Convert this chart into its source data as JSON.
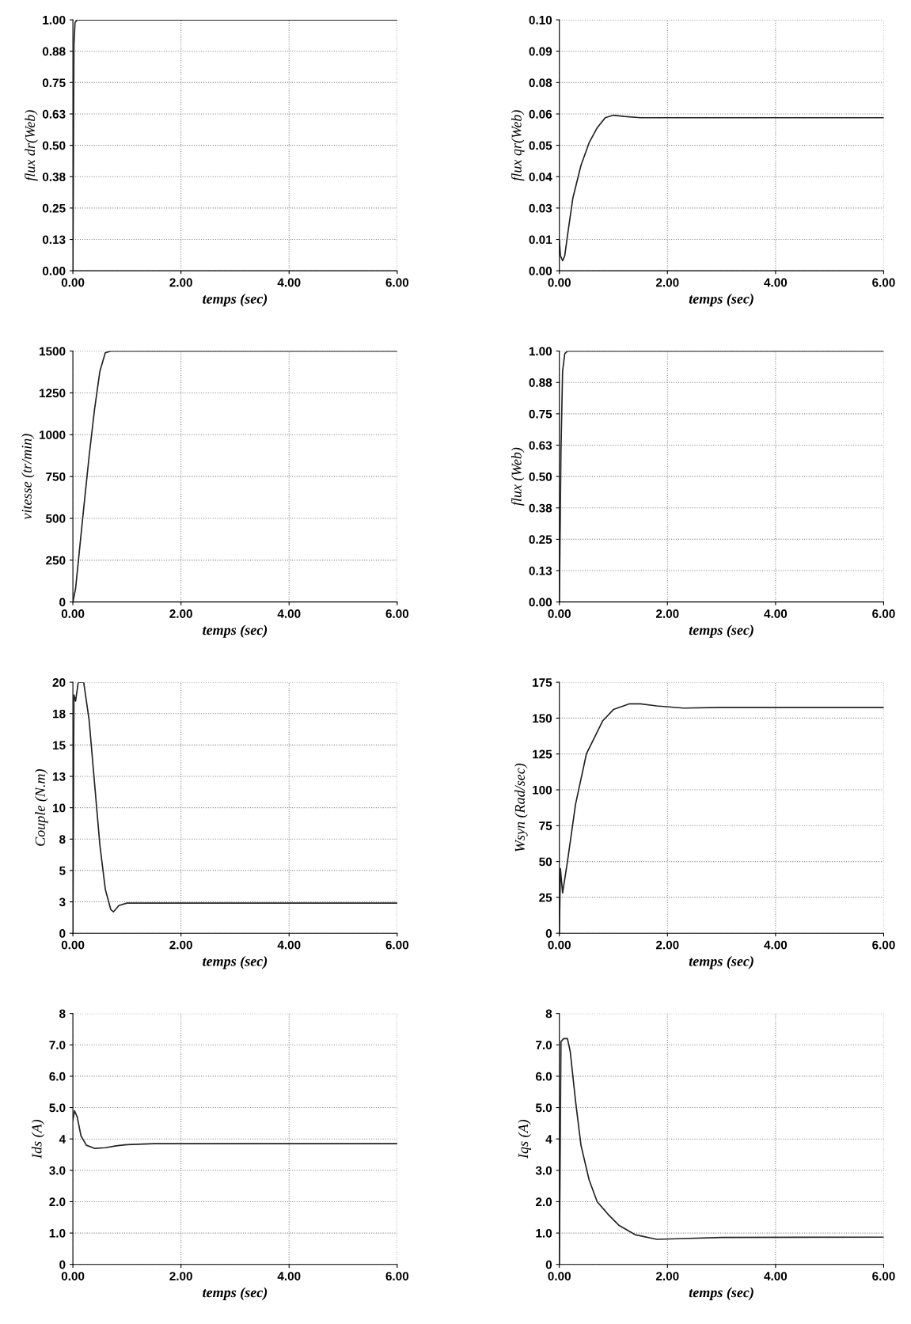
{
  "chart_data": [
    {
      "type": "line",
      "ylabel": "flux dr(Web)",
      "xlabel": "temps (sec)",
      "grid": true,
      "color": "#222222",
      "xlim": [
        0,
        6
      ],
      "xticks": [
        {
          "value": 0,
          "label": "0.00"
        },
        {
          "value": 2,
          "label": "2.00"
        },
        {
          "value": 4,
          "label": "4.00"
        },
        {
          "value": 6,
          "label": "6.00"
        }
      ],
      "ylim": [
        0,
        1
      ],
      "yticks": [
        {
          "value": 0,
          "label": "0.00"
        },
        {
          "value": 0.125,
          "label": "0.13"
        },
        {
          "value": 0.25,
          "label": "0.25"
        },
        {
          "value": 0.375,
          "label": "0.38"
        },
        {
          "value": 0.5,
          "label": "0.50"
        },
        {
          "value": 0.625,
          "label": "0.63"
        },
        {
          "value": 0.75,
          "label": "0.75"
        },
        {
          "value": 0.875,
          "label": "0.88"
        },
        {
          "value": 1,
          "label": "1.00"
        }
      ],
      "x": [
        0,
        0.02,
        0.04,
        0.08,
        0.2,
        1,
        3,
        6
      ],
      "values": [
        0,
        0.9,
        0.99,
        1.0,
        1.0,
        1.0,
        1.0,
        1.0
      ]
    },
    {
      "type": "line",
      "ylabel": "flux qr(Web)",
      "xlabel": "temps (sec)",
      "grid": true,
      "color": "#222222",
      "xlim": [
        0,
        6
      ],
      "xticks": [
        {
          "value": 0,
          "label": "0.00"
        },
        {
          "value": 2,
          "label": "2.00"
        },
        {
          "value": 4,
          "label": "4.00"
        },
        {
          "value": 6,
          "label": "6.00"
        }
      ],
      "ylim": [
        0,
        0.1
      ],
      "yticks": [
        {
          "value": 0,
          "label": "0.00"
        },
        {
          "value": 0.0125,
          "label": "0.01"
        },
        {
          "value": 0.025,
          "label": "0.03"
        },
        {
          "value": 0.0375,
          "label": "0.04"
        },
        {
          "value": 0.05,
          "label": "0.05"
        },
        {
          "value": 0.0625,
          "label": "0.06"
        },
        {
          "value": 0.075,
          "label": "0.08"
        },
        {
          "value": 0.0875,
          "label": "0.09"
        },
        {
          "value": 0.1,
          "label": "0.10"
        }
      ],
      "x": [
        0,
        0.02,
        0.06,
        0.1,
        0.15,
        0.25,
        0.4,
        0.55,
        0.7,
        0.85,
        1.0,
        1.2,
        1.5,
        2,
        4,
        6
      ],
      "values": [
        0.012,
        0.006,
        0.004,
        0.006,
        0.014,
        0.029,
        0.042,
        0.051,
        0.057,
        0.061,
        0.062,
        0.0615,
        0.061,
        0.061,
        0.061,
        0.061
      ]
    },
    {
      "type": "line",
      "ylabel": "vitesse (tr/min)",
      "xlabel": "temps (sec)",
      "grid": true,
      "color": "#222222",
      "xlim": [
        0,
        6
      ],
      "xticks": [
        {
          "value": 0,
          "label": "0.00"
        },
        {
          "value": 2,
          "label": "2.00"
        },
        {
          "value": 4,
          "label": "4.00"
        },
        {
          "value": 6,
          "label": "6.00"
        }
      ],
      "ylim": [
        0,
        1500
      ],
      "yticks": [
        0,
        250,
        500,
        750,
        1000,
        1250,
        1500
      ],
      "x": [
        0,
        0.05,
        0.1,
        0.2,
        0.3,
        0.4,
        0.5,
        0.6,
        0.7,
        0.9,
        1.2,
        2,
        6
      ],
      "values": [
        0,
        80,
        240,
        560,
        870,
        1150,
        1380,
        1490,
        1500,
        1500,
        1500,
        1500,
        1500
      ]
    },
    {
      "type": "line",
      "ylabel": "flux (Web)",
      "xlabel": "temps (sec)",
      "grid": true,
      "color": "#222222",
      "xlim": [
        0,
        6
      ],
      "xticks": [
        {
          "value": 0,
          "label": "0.00"
        },
        {
          "value": 2,
          "label": "2.00"
        },
        {
          "value": 4,
          "label": "4.00"
        },
        {
          "value": 6,
          "label": "6.00"
        }
      ],
      "ylim": [
        0,
        1
      ],
      "yticks": [
        {
          "value": 0,
          "label": "0.00"
        },
        {
          "value": 0.125,
          "label": "0.13"
        },
        {
          "value": 0.25,
          "label": "0.25"
        },
        {
          "value": 0.375,
          "label": "0.38"
        },
        {
          "value": 0.5,
          "label": "0.50"
        },
        {
          "value": 0.625,
          "label": "0.63"
        },
        {
          "value": 0.75,
          "label": "0.75"
        },
        {
          "value": 0.875,
          "label": "0.88"
        },
        {
          "value": 1,
          "label": "1.00"
        }
      ],
      "x": [
        0,
        0.03,
        0.06,
        0.1,
        0.15,
        0.2,
        0.4,
        1,
        6
      ],
      "values": [
        0,
        0.6,
        0.92,
        0.99,
        1.0,
        1.0,
        1.0,
        1.0,
        1.0
      ]
    },
    {
      "type": "line",
      "ylabel": "Couple (N.m)",
      "xlabel": "temps (sec)",
      "grid": true,
      "color": "#222222",
      "xlim": [
        0,
        6
      ],
      "xticks": [
        {
          "value": 0,
          "label": "0.00"
        },
        {
          "value": 2,
          "label": "2.00"
        },
        {
          "value": 4,
          "label": "4.00"
        },
        {
          "value": 6,
          "label": "6.00"
        }
      ],
      "ylim": [
        0,
        20
      ],
      "yticks": [
        0,
        {
          "value": 2.5,
          "label": "3"
        },
        5,
        {
          "value": 7.5,
          "label": "8"
        },
        10,
        {
          "value": 12.5,
          "label": "13"
        },
        15,
        {
          "value": 17.5,
          "label": "18"
        },
        20
      ],
      "x": [
        0,
        0.02,
        0.05,
        0.1,
        0.2,
        0.3,
        0.4,
        0.5,
        0.6,
        0.7,
        0.75,
        0.85,
        1.0,
        1.5,
        6
      ],
      "values": [
        0,
        19,
        18.5,
        20,
        20,
        17,
        12,
        7,
        3.5,
        1.9,
        1.7,
        2.2,
        2.4,
        2.4,
        2.4
      ]
    },
    {
      "type": "line",
      "ylabel": "Wsyn (Rad/sec)",
      "xlabel": "temps (sec)",
      "grid": true,
      "color": "#222222",
      "xlim": [
        0,
        6
      ],
      "xticks": [
        {
          "value": 0,
          "label": "0.00"
        },
        {
          "value": 2,
          "label": "2.00"
        },
        {
          "value": 4,
          "label": "4.00"
        },
        {
          "value": 6,
          "label": "6.00"
        }
      ],
      "ylim": [
        0,
        175
      ],
      "yticks": [
        0,
        25,
        50,
        75,
        100,
        125,
        150,
        175
      ],
      "x": [
        0,
        0.02,
        0.06,
        0.15,
        0.3,
        0.5,
        0.8,
        1.0,
        1.3,
        1.5,
        1.8,
        2.3,
        3,
        6
      ],
      "values": [
        0,
        45,
        28,
        50,
        90,
        125,
        148,
        156,
        160,
        160,
        158.5,
        157,
        157.5,
        157.5
      ]
    },
    {
      "type": "line",
      "ylabel": "Ids (A)",
      "xlabel": "temps (sec)",
      "grid": true,
      "color": "#222222",
      "xlim": [
        0,
        6
      ],
      "xticks": [
        {
          "value": 0,
          "label": "0.00"
        },
        {
          "value": 2,
          "label": "2.00"
        },
        {
          "value": 4,
          "label": "4.00"
        },
        {
          "value": 6,
          "label": "6.00"
        }
      ],
      "ylim": [
        0,
        8
      ],
      "yticks": [
        0,
        {
          "value": 1,
          "label": "1.0"
        },
        {
          "value": 2,
          "label": "2.0"
        },
        {
          "value": 3,
          "label": "3.0"
        },
        4,
        {
          "value": 5,
          "label": "5.0"
        },
        {
          "value": 6,
          "label": "6.0"
        },
        {
          "value": 7,
          "label": "7.0"
        },
        8
      ],
      "x": [
        0,
        0.03,
        0.08,
        0.15,
        0.25,
        0.4,
        0.6,
        0.8,
        1.0,
        1.5,
        2,
        6
      ],
      "values": [
        4.6,
        4.9,
        4.7,
        4.1,
        3.8,
        3.7,
        3.72,
        3.78,
        3.82,
        3.85,
        3.85,
        3.85
      ]
    },
    {
      "type": "line",
      "ylabel": "Iqs (A)",
      "xlabel": "temps (sec)",
      "grid": true,
      "color": "#222222",
      "xlim": [
        0,
        6
      ],
      "xticks": [
        {
          "value": 0,
          "label": "0.00"
        },
        {
          "value": 2,
          "label": "2.00"
        },
        {
          "value": 4,
          "label": "4.00"
        },
        {
          "value": 6,
          "label": "6.00"
        }
      ],
      "ylim": [
        0,
        8
      ],
      "yticks": [
        0,
        {
          "value": 1,
          "label": "1.0"
        },
        {
          "value": 2,
          "label": "2.0"
        },
        {
          "value": 3,
          "label": "3.0"
        },
        4,
        {
          "value": 5,
          "label": "5.0"
        },
        {
          "value": 6,
          "label": "6.0"
        },
        {
          "value": 7,
          "label": "7.0"
        },
        8
      ],
      "x": [
        0,
        0.03,
        0.08,
        0.15,
        0.2,
        0.3,
        0.4,
        0.55,
        0.7,
        0.9,
        1.1,
        1.4,
        1.8,
        2.2,
        3,
        6
      ],
      "values": [
        0,
        7.1,
        7.2,
        7.2,
        6.8,
        5.2,
        3.8,
        2.7,
        2.0,
        1.6,
        1.25,
        0.95,
        0.8,
        0.82,
        0.86,
        0.87
      ]
    }
  ]
}
